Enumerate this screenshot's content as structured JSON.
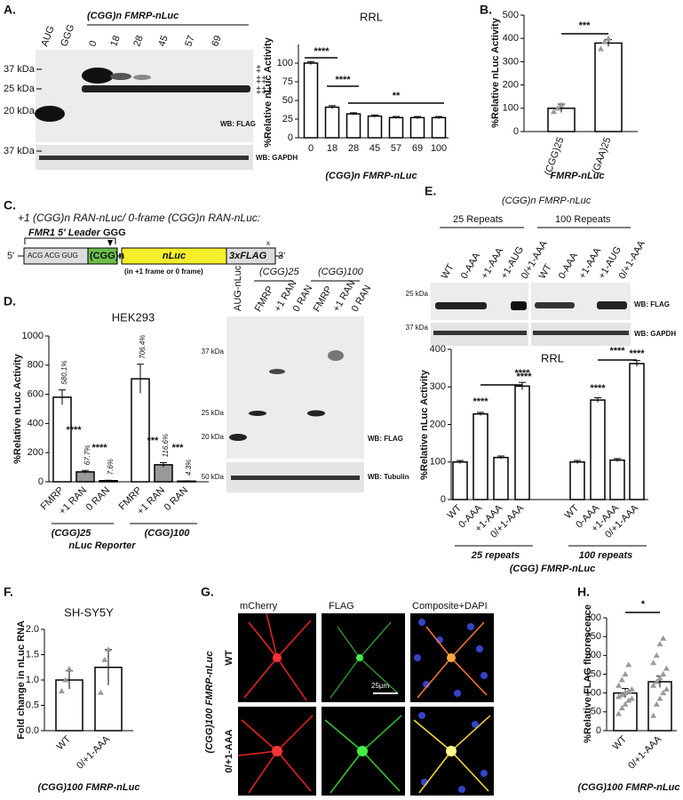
{
  "panels": {
    "A": {
      "letter": "A.",
      "lanes": [
        "AUG",
        "GGG",
        "0",
        "18",
        "28",
        "45",
        "57",
        "69"
      ],
      "construct": "(CGG)n FMRP-nLuc",
      "kda": [
        "37 kDa",
        "25 kDa",
        "20 kDa",
        "37 kDa"
      ],
      "marks": [
        "‡",
        "‡‡",
        "‡‡‡"
      ],
      "wb": [
        "WB: FLAG",
        "WB: GAPDH"
      ]
    },
    "B": {
      "letter": "B."
    },
    "C": {
      "letter": "C.",
      "title": "+1 (CGG)n RAN-nLuc/ 0-frame (CGG)n RAN-nLuc:",
      "leader": "FMR1 5' Leader",
      "ggg": "GGG",
      "five": "5'",
      "three": "3'",
      "acg": "ACG ACG GUG",
      "cgg": "(CGG)n",
      "nluc": "nLuc",
      "flag": "3xFLAG",
      "stop": "x",
      "frame": "(in +1 frame or 0 frame)"
    },
    "D": {
      "letter": "D.",
      "lanes": [
        "AUG-nLuc",
        "FMRP",
        "+1 RAN",
        "0 RAN",
        "FMRP",
        "+1 RAN",
        "0 RAN"
      ],
      "groups": [
        "(CGG)25",
        "(CGG)100"
      ],
      "kda": [
        "37 kDa",
        "25 kDa",
        "20 kDa",
        "50 kDa"
      ],
      "wb": [
        "WB: FLAG",
        "WB: Tubulin"
      ]
    },
    "E": {
      "letter": "E.",
      "construct": "(CGG)n FMRP-nLuc",
      "groups": [
        "25 Repeats",
        "100 Repeats"
      ],
      "lanes": [
        "WT",
        "0-AAA",
        "+1-AAA",
        "+1-AUG",
        "0/+1-AAA",
        "WT",
        "0-AAA",
        "+1-AAA",
        "+1-AUG",
        "0/+1-AAA"
      ],
      "kda": [
        "25 kDa",
        "37 kDa"
      ],
      "wb": [
        "WB: FLAG",
        "WB: GAPDH"
      ]
    },
    "F": {
      "letter": "F."
    },
    "G": {
      "letter": "G.",
      "channels": [
        "mCherry",
        "FLAG",
        "Composite+DAPI"
      ],
      "rows": [
        "WT",
        "0/+1-AAA"
      ],
      "construct": "(CGG)100 FMRP-nLuc",
      "scale": "25µm"
    },
    "H": {
      "letter": "H."
    }
  },
  "chart_data": [
    {
      "type": "bar",
      "title": "RRL",
      "ylabel": "%Relative nLuc Activity",
      "xlabel": "(CGG)n FMRP-nLuc",
      "categories": [
        "0",
        "18",
        "28",
        "45",
        "57",
        "69",
        "100"
      ],
      "values": [
        100,
        41,
        32,
        29,
        27,
        27,
        27
      ],
      "errors": [
        2,
        2,
        1.5,
        1.5,
        1.5,
        1.5,
        1.5
      ],
      "color": "#ffffff",
      "ylim": [
        0,
        125
      ],
      "yticks": [
        0,
        25,
        50,
        75,
        100
      ],
      "significance": [
        "****",
        "****",
        "**"
      ]
    },
    {
      "type": "bar",
      "ylabel": "%Relative nLuc Activity",
      "xlabel": "FMRP-nLuc",
      "categories": [
        "(CGG)25",
        "(GAA)25"
      ],
      "values": [
        100,
        380
      ],
      "errors": [
        18,
        15
      ],
      "points": [
        [
          85,
          100,
          115
        ],
        [
          355,
          385,
          400
        ]
      ],
      "color": "#ffffff",
      "ylim": [
        0,
        500
      ],
      "yticks": [
        0,
        100,
        200,
        300,
        400,
        500
      ],
      "significance": [
        "***"
      ]
    },
    {
      "type": "bar",
      "title": "HEK293",
      "ylabel": "%Relative nLuc Activity",
      "xlabel": "nLuc Reporter",
      "groups": [
        "(CGG)25",
        "(CGG)100"
      ],
      "categories": [
        "FMRP",
        "+1 RAN",
        "0 RAN",
        "FMRP",
        "+1 RAN",
        "0 RAN"
      ],
      "values": [
        580.1,
        67.7,
        7.6,
        706.4,
        116.6,
        4.3
      ],
      "value_labels": [
        "580.1%",
        "67.7%",
        "7.6%",
        "706.4%",
        "116.6%",
        "4.3%"
      ],
      "errors": [
        50,
        10,
        3,
        100,
        15,
        2
      ],
      "colors": [
        "#ffffff",
        "#999999",
        "#999999",
        "#ffffff",
        "#999999",
        "#999999"
      ],
      "ylim": [
        0,
        1000
      ],
      "yticks": [
        0,
        200,
        400,
        600,
        800,
        1000
      ],
      "significance": [
        "****",
        "****",
        "***",
        "***"
      ]
    },
    {
      "type": "bar",
      "title": "RRL",
      "ylabel": "%Relative nLuc Activity",
      "xlabel": "(CGG)   FMRP-nLuc",
      "groups": [
        "25 repeats",
        "100 repeats"
      ],
      "categories": [
        "WT",
        "0-AAA",
        "+1-AAA",
        "0/+1-AAA",
        "WT",
        "0-AAA",
        "+1-AAA",
        "0/+1-AAA"
      ],
      "values": [
        100,
        228,
        112,
        302,
        100,
        265,
        105,
        362
      ],
      "errors": [
        4,
        4,
        4,
        10,
        4,
        6,
        4,
        8
      ],
      "color": "#ffffff",
      "ylim": [
        0,
        400
      ],
      "yticks": [
        0,
        100,
        200,
        300,
        400
      ],
      "significance": [
        "****",
        "****",
        "****",
        "****",
        "****",
        "****"
      ]
    },
    {
      "type": "bar",
      "title": "SH-SY5Y",
      "ylabel": "Fold change in nLuc RNA",
      "xlabel": "(CGG)100 FMRP-nLuc",
      "categories": [
        "WT",
        "0/+1-AAA"
      ],
      "values": [
        1.0,
        1.25
      ],
      "errors": [
        0.18,
        0.35
      ],
      "points": [
        [
          0.78,
          1.0,
          1.22
        ],
        [
          0.75,
          1.4,
          1.6
        ]
      ],
      "color": "#ffffff",
      "ylim": [
        0,
        2
      ],
      "yticks": [
        {
          "value": 0,
          "label": "0.0"
        },
        0.5,
        {
          "value": 1,
          "label": "1.0"
        },
        1.5,
        {
          "value": 2,
          "label": "2.0"
        }
      ]
    },
    {
      "type": "bar",
      "ylabel": "%Relative FLAG fluorescence",
      "xlabel": "(CGG)100 FMRP-nLuc",
      "categories": [
        "WT",
        "0/+1-AAA"
      ],
      "values": [
        100,
        130
      ],
      "errors": [
        12,
        15
      ],
      "points": [
        [
          45,
          60,
          70,
          80,
          85,
          90,
          95,
          100,
          105,
          110,
          120,
          135,
          150,
          175
        ],
        [
          40,
          70,
          85,
          100,
          110,
          120,
          130,
          140,
          150,
          165,
          180,
          200,
          230,
          245
        ]
      ],
      "color": "#ffffff",
      "ylim": [
        0,
        300
      ],
      "yticks": [
        0,
        50,
        100,
        150,
        200,
        250,
        300
      ],
      "significance": [
        "*"
      ]
    }
  ]
}
